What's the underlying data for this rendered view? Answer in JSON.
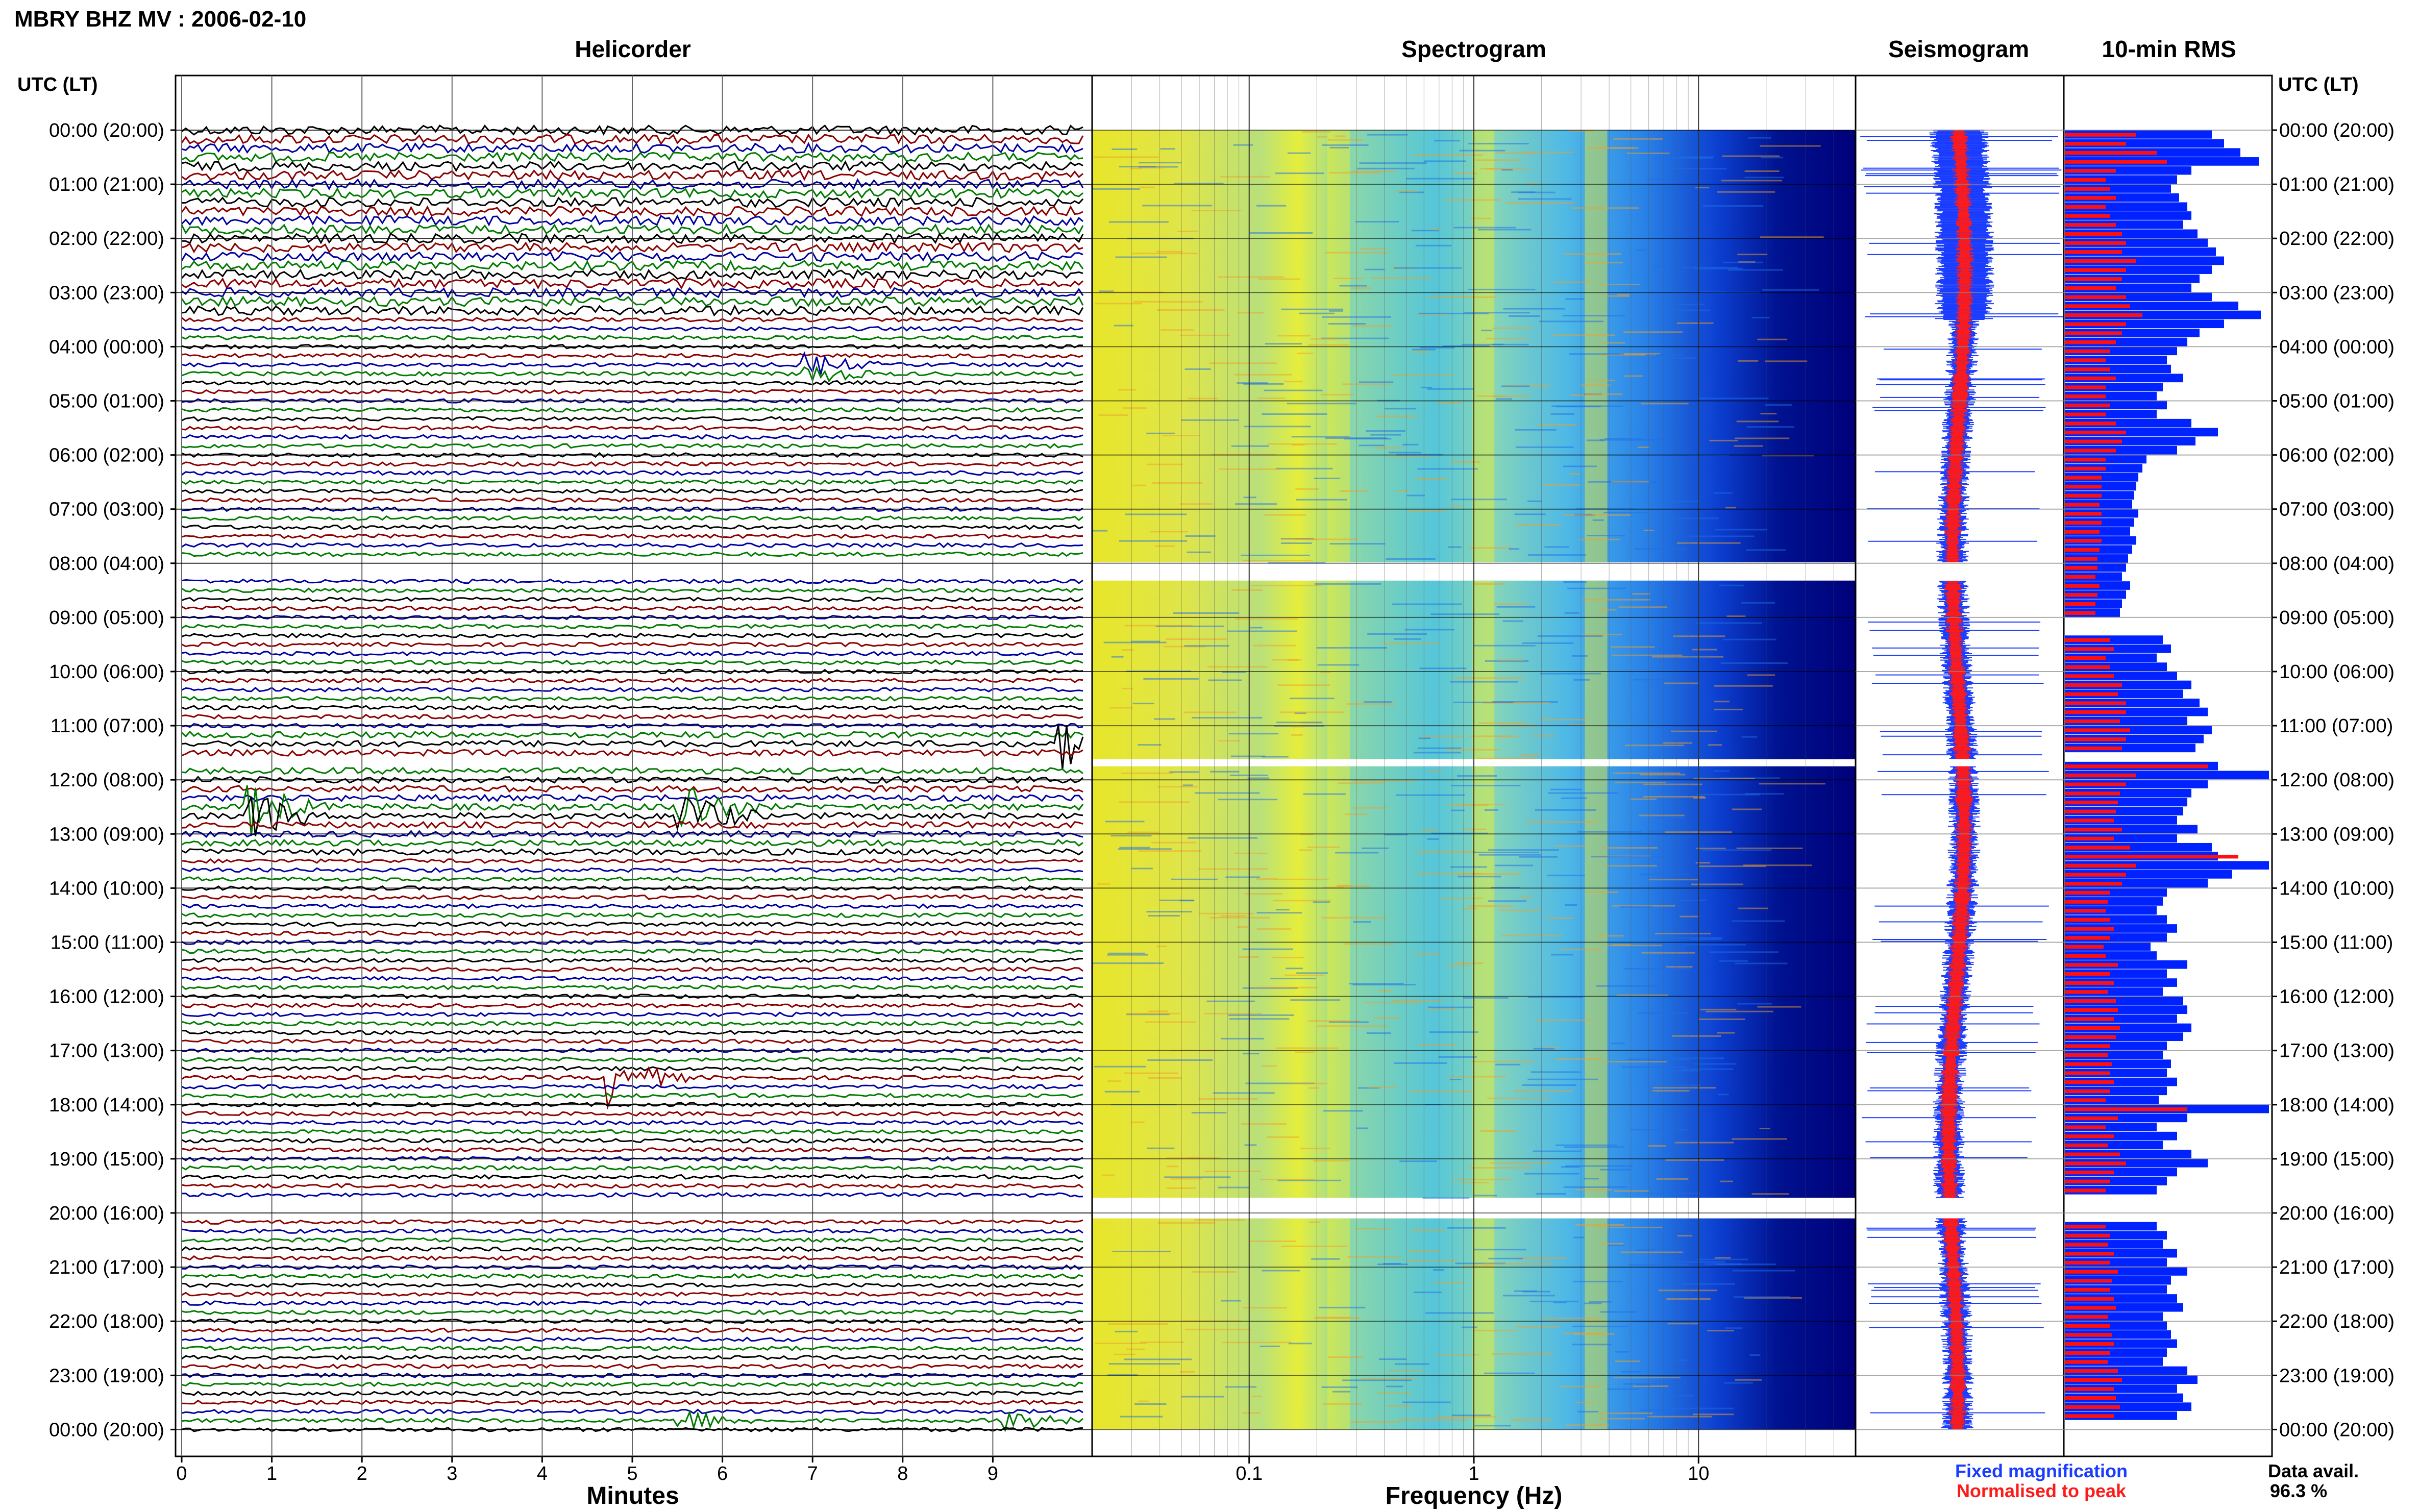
{
  "header": {
    "title": "MBRY BHZ MV : 2006-02-10",
    "time_axis_label": "UTC (LT)"
  },
  "panels": {
    "helicorder": "Helicorder",
    "spectrogram": "Spectrogram",
    "seismogram": "Seismogram",
    "rms": "10-min RMS"
  },
  "hour_labels": [
    "00:00 (20:00)",
    "01:00 (21:00)",
    "02:00 (22:00)",
    "03:00 (23:00)",
    "04:00 (00:00)",
    "05:00 (01:00)",
    "06:00 (02:00)",
    "07:00 (03:00)",
    "08:00 (04:00)",
    "09:00 (05:00)",
    "10:00 (06:00)",
    "11:00 (07:00)",
    "12:00 (08:00)",
    "13:00 (09:00)",
    "14:00 (10:00)",
    "15:00 (11:00)",
    "16:00 (12:00)",
    "17:00 (13:00)",
    "18:00 (14:00)",
    "19:00 (15:00)",
    "20:00 (16:00)",
    "21:00 (17:00)",
    "22:00 (18:00)",
    "23:00 (19:00)",
    "00:00 (20:00)"
  ],
  "legend": {
    "fixed": "Fixed magnification",
    "normalised": "Normalised to peak",
    "fixed_color": "#1a3cff",
    "normalised_color": "#ff1a1a"
  },
  "availability": {
    "label": "Data avail.",
    "value": "96.3 %"
  },
  "colors": {
    "trace_cycle": [
      "#000000",
      "#8b0000",
      "#0000a0",
      "#007a00"
    ],
    "rms_fixed": "#0022ff",
    "rms_norm": "#ff1010",
    "spec_low": "#00008b",
    "spec_high": "#ffff00"
  },
  "data_gaps_hours": [
    [
      7.98,
      8.32
    ],
    [
      11.62,
      11.75
    ],
    [
      19.72,
      20.1
    ]
  ],
  "chart_data": [
    {
      "type": "line",
      "panel": "Helicorder",
      "xlabel": "Minutes",
      "x_ticks": [
        "0",
        "1",
        "2",
        "3",
        "4",
        "5",
        "6",
        "7",
        "8",
        "9"
      ],
      "xlim": [
        0,
        10
      ],
      "ylim_hours": [
        0,
        24
      ],
      "lines_per_hour": 6,
      "series_colors_cycle": [
        "black",
        "dark red",
        "blue",
        "green"
      ],
      "events": [
        {
          "hour": 12.6,
          "minute": 5.6,
          "amplitude": "large"
        },
        {
          "hour": 12.6,
          "minute": 0.8,
          "amplitude": "large"
        },
        {
          "hour": 17.5,
          "minute": 4.8,
          "amplitude": "large"
        },
        {
          "hour": 11.3,
          "minute": 9.8,
          "amplitude": "large"
        },
        {
          "hour": 4.4,
          "minute": 7.0,
          "amplitude": "medium"
        },
        {
          "hour": 23.8,
          "minute": 5.6,
          "amplitude": "medium"
        },
        {
          "hour": 23.8,
          "minute": 9.2,
          "amplitude": "medium"
        }
      ]
    },
    {
      "type": "heatmap",
      "panel": "Spectrogram",
      "xlabel": "Frequency (Hz)",
      "x_scale": "log",
      "x_ticks": [
        "0.1",
        "1",
        "10"
      ],
      "xlim": [
        0.02,
        50
      ],
      "ylim_hours": [
        0,
        24
      ],
      "colormap": "jet",
      "bright_bands_hz": [
        0.25,
        1.1,
        3.5
      ]
    },
    {
      "type": "line",
      "panel": "Seismogram",
      "series": [
        {
          "name": "Fixed magnification",
          "color": "blue"
        },
        {
          "name": "Normalised to peak",
          "color": "red"
        }
      ]
    },
    {
      "type": "bar",
      "panel": "10-min RMS",
      "orientation": "horizontal",
      "bin_minutes": 10,
      "series": [
        {
          "name": "Fixed magnification",
          "color": "blue",
          "values": [
            0.72,
            0.78,
            0.86,
            0.95,
            0.62,
            0.55,
            0.52,
            0.56,
            0.6,
            0.62,
            0.58,
            0.65,
            0.7,
            0.74,
            0.78,
            0.72,
            0.66,
            0.62,
            0.72,
            0.85,
            0.96,
            0.78,
            0.66,
            0.6,
            0.55,
            0.5,
            0.52,
            0.58,
            0.48,
            0.45,
            0.5,
            0.45,
            0.62,
            0.75,
            0.64,
            0.55,
            0.4,
            0.38,
            0.36,
            0.35,
            0.34,
            0.33,
            0.36,
            0.34,
            0.32,
            0.35,
            0.33,
            0.31,
            0.3,
            0.28,
            0.32,
            0.3,
            0.28,
            0.27,
            0.0,
            0.0,
            0.48,
            0.52,
            0.45,
            0.5,
            0.55,
            0.62,
            0.58,
            0.66,
            0.7,
            0.6,
            0.72,
            0.68,
            0.64,
            0.0,
            0.75,
            1.0,
            0.7,
            0.62,
            0.6,
            0.58,
            0.55,
            0.65,
            0.55,
            0.72,
            0.75,
            1.0,
            0.82,
            0.7,
            0.5,
            0.48,
            0.45,
            0.5,
            0.55,
            0.5,
            0.42,
            0.45,
            0.6,
            0.5,
            0.55,
            0.48,
            0.58,
            0.6,
            0.55,
            0.62,
            0.58,
            0.5,
            0.48,
            0.52,
            0.5,
            0.55,
            0.5,
            0.46,
            1.0,
            0.6,
            0.45,
            0.55,
            0.48,
            0.62,
            0.7,
            0.55,
            0.5,
            0.45,
            0.0,
            0.0,
            0.0,
            0.45,
            0.5,
            0.48,
            0.55,
            0.5,
            0.6,
            0.52,
            0.5,
            0.55,
            0.58,
            0.48,
            0.5,
            0.52,
            0.55,
            0.5,
            0.48,
            0.6,
            0.65,
            0.55,
            0.58,
            0.62,
            0.55
          ]
        },
        {
          "name": "Normalised to peak",
          "color": "red",
          "values": [
            0.35,
            0.3,
            0.45,
            0.5,
            0.25,
            0.2,
            0.22,
            0.25,
            0.2,
            0.22,
            0.25,
            0.28,
            0.3,
            0.28,
            0.35,
            0.3,
            0.28,
            0.25,
            0.3,
            0.32,
            0.38,
            0.3,
            0.28,
            0.25,
            0.22,
            0.2,
            0.22,
            0.25,
            0.2,
            0.2,
            0.22,
            0.2,
            0.25,
            0.3,
            0.28,
            0.25,
            0.2,
            0.2,
            0.18,
            0.18,
            0.18,
            0.17,
            0.18,
            0.18,
            0.17,
            0.18,
            0.17,
            0.16,
            0.16,
            0.15,
            0.17,
            0.16,
            0.15,
            0.15,
            0.0,
            0.0,
            0.22,
            0.24,
            0.2,
            0.22,
            0.24,
            0.28,
            0.26,
            0.3,
            0.3,
            0.27,
            0.32,
            0.3,
            0.28,
            0.0,
            0.7,
            0.35,
            0.3,
            0.27,
            0.26,
            0.25,
            0.24,
            0.28,
            0.24,
            0.32,
            0.85,
            0.35,
            0.3,
            0.28,
            0.22,
            0.21,
            0.2,
            0.22,
            0.24,
            0.22,
            0.19,
            0.2,
            0.26,
            0.22,
            0.24,
            0.21,
            0.25,
            0.26,
            0.24,
            0.27,
            0.25,
            0.22,
            0.21,
            0.23,
            0.22,
            0.24,
            0.22,
            0.2,
            0.6,
            0.26,
            0.2,
            0.24,
            0.21,
            0.27,
            0.3,
            0.24,
            0.22,
            0.2,
            0.0,
            0.0,
            0.0,
            0.2,
            0.22,
            0.21,
            0.24,
            0.22,
            0.26,
            0.23,
            0.22,
            0.24,
            0.25,
            0.21,
            0.22,
            0.23,
            0.24,
            0.22,
            0.21,
            0.26,
            0.28,
            0.24,
            0.25,
            0.27,
            0.24
          ]
        }
      ]
    }
  ]
}
